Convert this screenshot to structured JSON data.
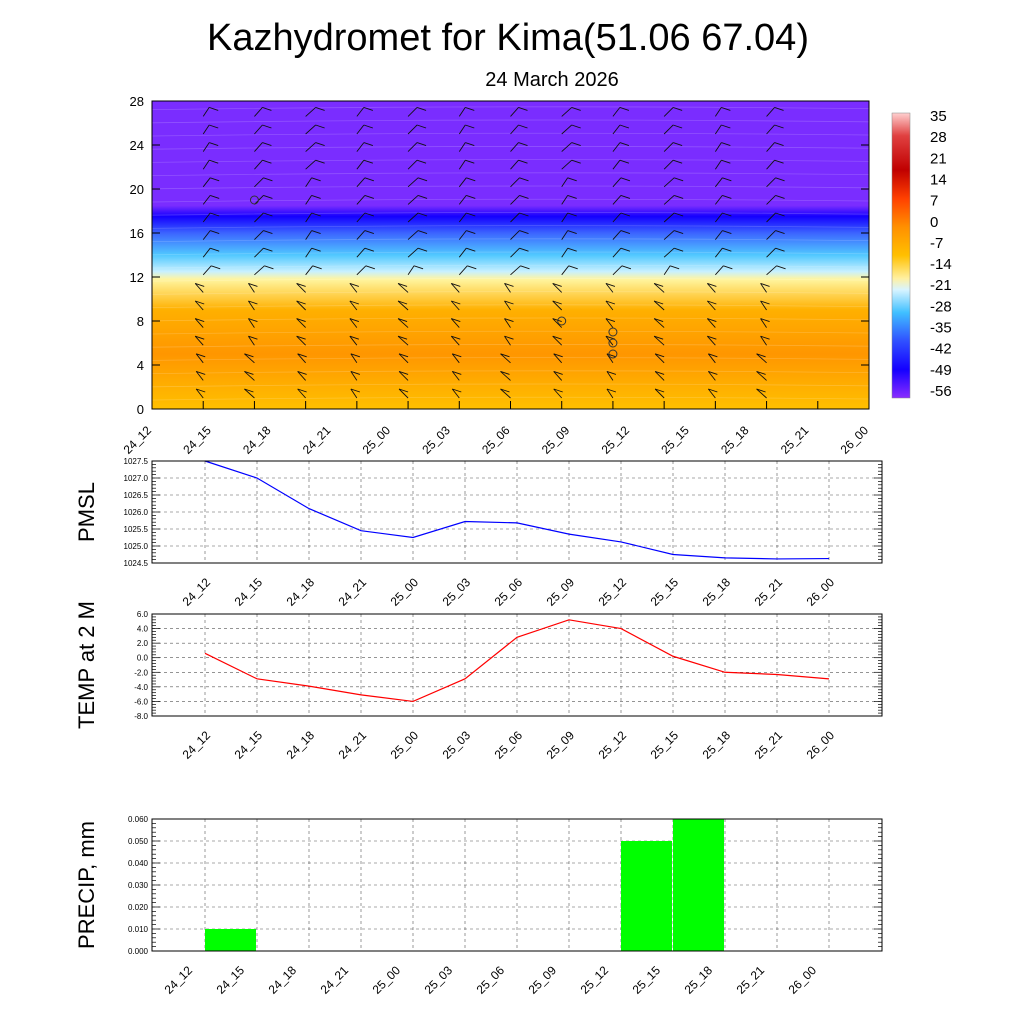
{
  "title": "Kazhydromet for Kima(51.06 67.04)",
  "subtitle": "24 March 2026",
  "time_labels": [
    "24_12",
    "24_15",
    "24_18",
    "24_21",
    "25_00",
    "25_03",
    "25_06",
    "25_09",
    "25_12",
    "25_15",
    "25_18",
    "25_21",
    "26_00"
  ],
  "chart_data": [
    {
      "type": "heatmap",
      "name": "cross-section",
      "y_ticks": [
        "0",
        "4",
        "8",
        "12",
        "16",
        "20",
        "24",
        "28"
      ],
      "ylim": [
        0,
        28
      ],
      "colorbar_labels": [
        "35",
        "28",
        "21",
        "14",
        "7",
        "0",
        "-7",
        "-14",
        "-21",
        "-28",
        "-35",
        "-42",
        "-49",
        "-56"
      ],
      "color_stops": [
        {
          "level": 0,
          "color": "#ffc000"
        },
        {
          "level": 5,
          "color": "#ff9600"
        },
        {
          "level": 9,
          "color": "#ffb000"
        },
        {
          "level": 11.8,
          "color": "#fff5a0"
        },
        {
          "level": 12.5,
          "color": "#c8f0ff"
        },
        {
          "level": 14,
          "color": "#50c8ff"
        },
        {
          "level": 16,
          "color": "#3c64ff"
        },
        {
          "level": 17.5,
          "color": "#1400ff"
        },
        {
          "level": 18.5,
          "color": "#7a2dff"
        },
        {
          "level": 28,
          "color": "#7a2dff"
        }
      ],
      "circle_markers": [
        {
          "time_index": 1,
          "level": 19
        },
        {
          "time_index": 7,
          "level": 8
        },
        {
          "time_index": 8,
          "level": 7
        },
        {
          "time_index": 8,
          "level": 6
        },
        {
          "time_index": 8,
          "level": 5
        }
      ]
    },
    {
      "type": "line",
      "name": "pmsl",
      "ylabel": "PMSL",
      "ylim": [
        1024.5,
        1027.5
      ],
      "y_ticks": [
        "1024.5",
        "1025.0",
        "1025.5",
        "1026.0",
        "1026.5",
        "1027.0",
        "1027.5"
      ],
      "color": "#0000ff",
      "values": [
        1027.5,
        1027.0,
        1026.1,
        1025.45,
        1025.25,
        1025.72,
        1025.68,
        1025.35,
        1025.12,
        1024.75,
        1024.65,
        1024.62,
        1024.63
      ]
    },
    {
      "type": "line",
      "name": "temp2m",
      "ylabel": "TEMP at 2 M",
      "ylim": [
        -8,
        6
      ],
      "y_ticks": [
        "-8.0",
        "-6.0",
        "-4.0",
        "-2.0",
        "0.0",
        "2.0",
        "4.0",
        "6.0"
      ],
      "color": "#ff0000",
      "values": [
        0.6,
        -2.9,
        -3.9,
        -5.1,
        -6.0,
        -2.9,
        2.8,
        5.2,
        4.0,
        0.2,
        -2.0,
        -2.3,
        -2.9
      ]
    },
    {
      "type": "bar",
      "name": "precip",
      "ylabel": "PRECIP, mm",
      "ylim": [
        0,
        0.06
      ],
      "y_ticks": [
        "0.000",
        "0.010",
        "0.020",
        "0.030",
        "0.040",
        "0.050",
        "0.060"
      ],
      "color": "#00ff00",
      "values": [
        0,
        0.01,
        0,
        0,
        0,
        0,
        0,
        0,
        0,
        0.05,
        0.06,
        0,
        0
      ]
    }
  ]
}
